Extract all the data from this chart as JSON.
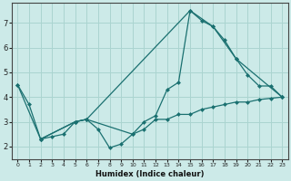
{
  "xlabel": "Humidex (Indice chaleur)",
  "bg_color": "#cceae8",
  "grid_color": "#aad4d0",
  "line_color": "#1a7070",
  "spine_color": "#444444",
  "xlim": [
    -0.5,
    23.5
  ],
  "ylim": [
    1.5,
    7.8
  ],
  "yticks": [
    2,
    3,
    4,
    5,
    6,
    7
  ],
  "xticks": [
    0,
    1,
    2,
    3,
    4,
    5,
    6,
    7,
    8,
    9,
    10,
    11,
    12,
    13,
    14,
    15,
    16,
    17,
    18,
    19,
    20,
    21,
    22,
    23
  ],
  "series1_x": [
    0,
    1,
    2,
    3,
    4,
    5,
    6,
    7,
    8,
    9,
    10,
    11,
    12,
    13,
    14,
    15,
    16,
    17,
    18,
    19,
    20,
    21,
    22,
    23
  ],
  "series1_y": [
    4.5,
    3.7,
    2.3,
    2.4,
    2.5,
    3.0,
    3.1,
    2.7,
    1.95,
    2.1,
    2.5,
    2.7,
    3.1,
    3.1,
    3.3,
    3.3,
    3.5,
    3.6,
    3.7,
    3.8,
    3.8,
    3.9,
    3.95,
    4.0
  ],
  "series2_x": [
    0,
    2,
    5,
    6,
    10,
    11,
    12,
    13,
    14,
    15,
    16,
    17,
    18,
    19,
    20,
    21,
    22,
    23
  ],
  "series2_y": [
    4.5,
    2.3,
    3.0,
    3.1,
    2.5,
    3.0,
    3.25,
    4.3,
    4.6,
    7.5,
    7.1,
    6.85,
    6.3,
    5.55,
    4.9,
    4.45,
    4.45,
    4.0
  ],
  "series3_x": [
    2,
    5,
    6,
    15,
    17,
    19,
    23
  ],
  "series3_y": [
    2.3,
    3.0,
    3.1,
    7.5,
    6.85,
    5.55,
    4.0
  ]
}
